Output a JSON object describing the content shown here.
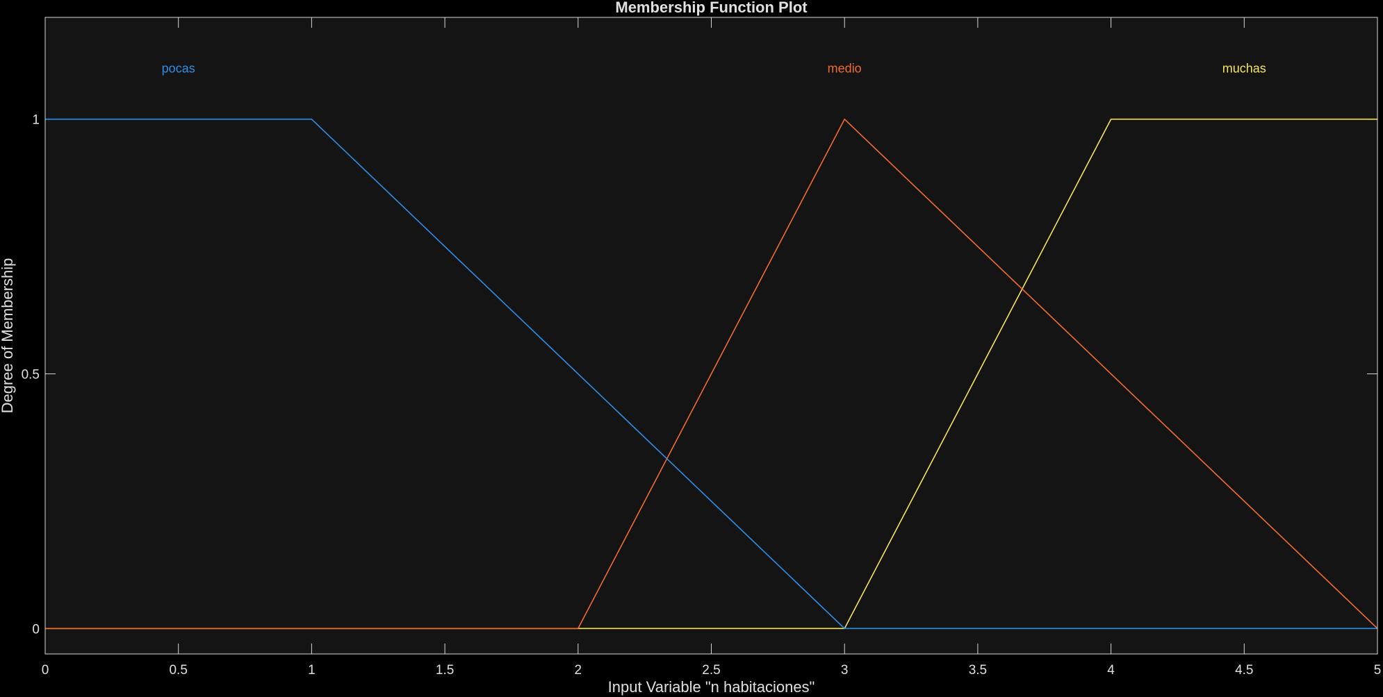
{
  "chart_data": {
    "type": "line",
    "title": "Membership Function Plot",
    "xlabel": "Input Variable \"n habitaciones\"",
    "ylabel": "Degree of Membership",
    "xlim": [
      0,
      5
    ],
    "ylim": [
      -0.05,
      1.2
    ],
    "x_ticks": [
      "0",
      "0.5",
      "1",
      "1.5",
      "2",
      "2.5",
      "3",
      "3.5",
      "4",
      "4.5",
      "5"
    ],
    "y_ticks": [
      "0",
      "0.5",
      "1"
    ],
    "grid": false,
    "series": [
      {
        "name": "pocas",
        "color": "#2f8fe8",
        "label_at": [
          0.5,
          1.1
        ],
        "points": [
          [
            0,
            1
          ],
          [
            1,
            1
          ],
          [
            3,
            0
          ],
          [
            5,
            0
          ]
        ]
      },
      {
        "name": "medio",
        "color": "#f26b30",
        "label_at": [
          3,
          1.1
        ],
        "points": [
          [
            0,
            0
          ],
          [
            2,
            0
          ],
          [
            3,
            1
          ],
          [
            5,
            0
          ]
        ]
      },
      {
        "name": "muchas",
        "color": "#f7e45a",
        "label_at": [
          4.5,
          1.1
        ],
        "points": [
          [
            0,
            0
          ],
          [
            3,
            0
          ],
          [
            4,
            1
          ],
          [
            5,
            1
          ]
        ]
      }
    ],
    "colors": {
      "figure_bg": "#000000",
      "axes_bg": "#141414",
      "axes_edge": "#d8d8d8",
      "text": "#e0e0e0"
    }
  }
}
